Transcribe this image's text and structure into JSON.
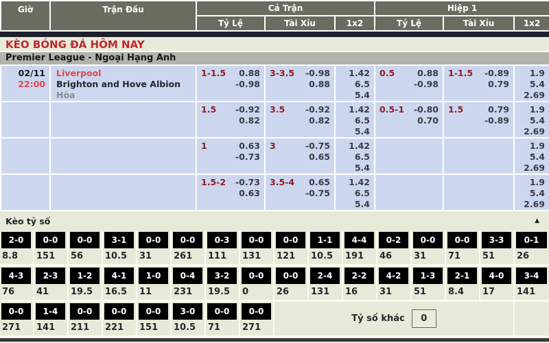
{
  "header": {
    "col_time": "Giờ",
    "col_match": "Trận Đấu",
    "group_full": "Cả Trận",
    "group_half": "Hiệp 1",
    "sub_odds": "Tỷ Lệ",
    "sub_ou": "Tài Xỉu",
    "sub_1x2": "1x2"
  },
  "page_title": "KÈO BÓNG ĐÁ HÔM NAY",
  "league_title": "Premier League - Ngoại Hạng Anh",
  "match": {
    "date": "02/11",
    "time": "22:00",
    "home": "Liverpool",
    "away": "Brighton and Hove Albion",
    "draw": "Hòa"
  },
  "odds_rows": [
    {
      "ft_handicap": {
        "line": "1-1.5",
        "top": "0.88",
        "bottom": "-0.98"
      },
      "ft_ou": {
        "line": "3-3.5",
        "top": "-0.98",
        "bottom": "0.88"
      },
      "ft_1x2": [
        "1.42",
        "6.5",
        "5.4"
      ],
      "h1_handicap": {
        "line": "0.5",
        "top": "0.88",
        "bottom": "-0.98"
      },
      "h1_ou": {
        "line": "1-1.5",
        "top": "-0.89",
        "bottom": "0.79"
      },
      "h1_1x2": [
        "1.9",
        "5.4",
        "2.69"
      ]
    },
    {
      "ft_handicap": {
        "line": "1.5",
        "top": "-0.92",
        "bottom": "0.82"
      },
      "ft_ou": {
        "line": "3.5",
        "top": "-0.92",
        "bottom": "0.82"
      },
      "ft_1x2": [
        "1.42",
        "6.5",
        "5.4"
      ],
      "h1_handicap": {
        "line": "0.5-1",
        "top": "-0.80",
        "bottom": "0.70"
      },
      "h1_ou": {
        "line": "1.5",
        "top": "0.79",
        "bottom": "-0.89"
      },
      "h1_1x2": [
        "1.9",
        "5.4",
        "2.69"
      ]
    },
    {
      "ft_handicap": {
        "line": "1",
        "top": "0.63",
        "bottom": "-0.73"
      },
      "ft_ou": {
        "line": "3",
        "top": "-0.75",
        "bottom": "0.65"
      },
      "ft_1x2": [
        "1.42",
        "6.5",
        "5.4"
      ],
      "h1_handicap": null,
      "h1_ou": null,
      "h1_1x2": [
        "1.9",
        "5.4",
        "2.69"
      ]
    },
    {
      "ft_handicap": {
        "line": "1.5-2",
        "top": "-0.73",
        "bottom": "0.63"
      },
      "ft_ou": {
        "line": "3.5-4",
        "top": "0.65",
        "bottom": "-0.75"
      },
      "ft_1x2": [
        "1.42",
        "6.5",
        "5.4"
      ],
      "h1_handicap": null,
      "h1_ou": null,
      "h1_1x2": [
        "1.9",
        "5.4",
        "2.69"
      ]
    }
  ],
  "score_section": {
    "title": "Kèo tỷ số",
    "other_label": "Tỷ số khác",
    "other_value": "0",
    "rows": [
      [
        {
          "score": "2-0",
          "odds": "8.8"
        },
        {
          "score": "0-0",
          "odds": "151"
        },
        {
          "score": "0-0",
          "odds": "56"
        },
        {
          "score": "3-1",
          "odds": "10.5"
        },
        {
          "score": "0-0",
          "odds": "31"
        },
        {
          "score": "0-0",
          "odds": "261"
        },
        {
          "score": "0-3",
          "odds": "111"
        },
        {
          "score": "0-0",
          "odds": "131"
        },
        {
          "score": "0-0",
          "odds": "121"
        },
        {
          "score": "1-1",
          "odds": "10.5"
        },
        {
          "score": "4-4",
          "odds": "191"
        },
        {
          "score": "0-2",
          "odds": "46"
        },
        {
          "score": "0-0",
          "odds": "31"
        },
        {
          "score": "0-0",
          "odds": "71"
        },
        {
          "score": "3-3",
          "odds": "51"
        },
        {
          "score": "0-1",
          "odds": "26"
        }
      ],
      [
        {
          "score": "4-3",
          "odds": "76"
        },
        {
          "score": "2-3",
          "odds": "41"
        },
        {
          "score": "1-2",
          "odds": "19.5"
        },
        {
          "score": "4-1",
          "odds": "16.5"
        },
        {
          "score": "1-0",
          "odds": "11"
        },
        {
          "score": "0-4",
          "odds": "231"
        },
        {
          "score": "3-2",
          "odds": "19.5"
        },
        {
          "score": "0-0",
          "odds": "0"
        },
        {
          "score": "0-0",
          "odds": "26"
        },
        {
          "score": "2-4",
          "odds": "131"
        },
        {
          "score": "2-2",
          "odds": "16"
        },
        {
          "score": "4-2",
          "odds": "31"
        },
        {
          "score": "1-3",
          "odds": "51"
        },
        {
          "score": "2-1",
          "odds": "8.4"
        },
        {
          "score": "4-0",
          "odds": "17"
        },
        {
          "score": "3-4",
          "odds": "141"
        }
      ],
      [
        {
          "score": "0-0",
          "odds": "271"
        },
        {
          "score": "1-4",
          "odds": "141"
        },
        {
          "score": "0-0",
          "odds": "211"
        },
        {
          "score": "0-0",
          "odds": "221"
        },
        {
          "score": "0-0",
          "odds": "151"
        },
        {
          "score": "3-0",
          "odds": "10.5"
        },
        {
          "score": "0-0",
          "odds": "71"
        },
        {
          "score": "0-0",
          "odds": "271"
        }
      ]
    ]
  },
  "colors": {
    "header_bg": "#696d60",
    "dark_bar": "#1b1f2e",
    "title_red": "#c2262e",
    "league_bar_bg": "#b2b3ab",
    "row_blue": "#ccd7ef",
    "handicap_maroon": "#8f1d22",
    "team_red": "#e0484e",
    "score_cell_bg": "#000000",
    "page_bg": "#e8ead9"
  }
}
